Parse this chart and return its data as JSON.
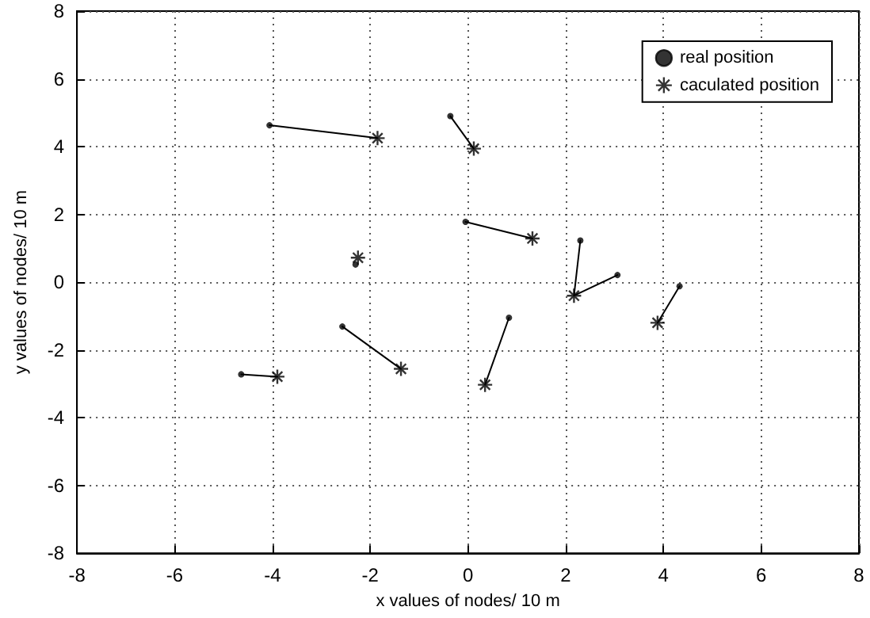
{
  "chart_data": {
    "type": "scatter",
    "xlabel": "x values of nodes/ 10 m",
    "ylabel": "y values of nodes/ 10 m",
    "xlim": [
      -8,
      8
    ],
    "xticks": [
      -8,
      -6,
      -4,
      -2,
      0,
      2,
      4,
      6,
      8
    ],
    "ylim": [
      -8,
      8
    ],
    "yticks": [
      -8,
      -6,
      -4,
      -2,
      0,
      2,
      4,
      6,
      8
    ],
    "grid": true,
    "legend": "top right",
    "series": [
      {
        "type": "line",
        "color": "#000000",
        "marker": "none",
        "x": [
          -4.06,
          -1.85
        ],
        "values": [
          4.63,
          4.25
        ]
      },
      {
        "type": "line",
        "color": "#000000",
        "marker": "none",
        "x": [
          -0.36,
          0.12
        ],
        "values": [
          4.9,
          3.94
        ]
      },
      {
        "type": "line",
        "color": "#000000",
        "marker": "none",
        "x": [
          -0.05,
          1.32
        ],
        "values": [
          1.78,
          1.29
        ]
      },
      {
        "type": "line",
        "color": "#000000",
        "marker": "none",
        "x": [
          2.3,
          2.17
        ],
        "values": [
          1.23,
          -0.4
        ]
      },
      {
        "type": "line",
        "color": "#000000",
        "marker": "none",
        "x": [
          3.06,
          2.17
        ],
        "values": [
          0.21,
          -0.4
        ]
      },
      {
        "type": "line",
        "color": "#000000",
        "marker": "none",
        "x": [
          4.33,
          3.88
        ],
        "values": [
          -0.12,
          -1.2
        ]
      },
      {
        "type": "line",
        "color": "#000000",
        "marker": "none",
        "x": [
          0.84,
          0.35
        ],
        "values": [
          -1.05,
          -3.03
        ]
      },
      {
        "type": "line",
        "color": "#000000",
        "marker": "none",
        "x": [
          -2.57,
          -1.37
        ],
        "values": [
          -1.31,
          -2.56
        ]
      },
      {
        "type": "line",
        "color": "#000000",
        "marker": "none",
        "x": [
          -4.64,
          -3.9
        ],
        "values": [
          -2.72,
          -2.79
        ]
      },
      {
        "name": "real position",
        "color": "#000000",
        "marker": "circle",
        "x": [
          -4.06,
          -0.36,
          -0.05,
          -2.3,
          2.3,
          3.06,
          4.33,
          0.84,
          -2.57,
          -4.64
        ],
        "values": [
          4.63,
          4.9,
          1.78,
          0.52,
          1.23,
          0.21,
          -0.12,
          -1.05,
          -1.31,
          -2.72
        ]
      },
      {
        "name": "caculated position",
        "color": "#000000",
        "marker": "cross",
        "x": [
          -1.85,
          0.12,
          1.32,
          -2.25,
          2.17,
          3.88,
          0.35,
          -1.37,
          -3.9
        ],
        "values": [
          4.25,
          3.94,
          1.29,
          0.72,
          -0.4,
          -1.2,
          -3.03,
          -2.56,
          -2.79
        ]
      }
    ]
  }
}
